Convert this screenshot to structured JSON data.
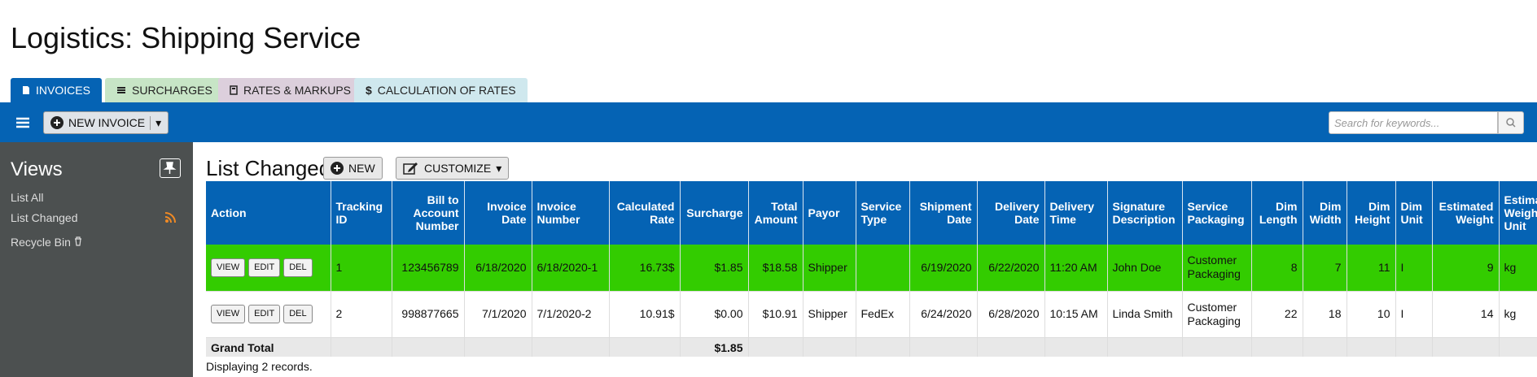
{
  "header": {
    "title": "Logistics: Shipping Service"
  },
  "tabs": [
    "INVOICES",
    "SURCHARGES",
    "RATES & MARKUPS",
    "CALCULATION OF RATES"
  ],
  "toolbar": {
    "new_button": "NEW INVOICE",
    "search_placeholder": "Search for keywords..."
  },
  "sidebar": {
    "title": "Views",
    "items": [
      "List All",
      "List Changed",
      "Recycle Bin"
    ]
  },
  "list": {
    "title": "List Changed",
    "new_button": "NEW",
    "customize_button": "CUSTOMIZE"
  },
  "table": {
    "columns": [
      "Action",
      "Tracking ID",
      "Bill to Account Number",
      "Invoice Date",
      "Invoice Number",
      "Calculated Rate",
      "Surcharge",
      "Total Amount",
      "Payor",
      "Service Type",
      "Shipment Date",
      "Delivery Date",
      "Delivery Time",
      "Signature Description",
      "Service Packaging",
      "Dim Length",
      "Dim Width",
      "Dim Height",
      "Dim Unit",
      "Estimated Weight",
      "Estimated Weight Unit"
    ],
    "rows": [
      {
        "actions": [
          "VIEW",
          "EDIT",
          "DEL"
        ],
        "cells": [
          "1",
          "123456789",
          "6/18/2020",
          "6/18/2020-1",
          "16.73$",
          "$1.85",
          "$18.58",
          "Shipper",
          null,
          "6/19/2020",
          "6/22/2020",
          "11:20 AM",
          "John Doe",
          "Customer Packaging",
          "8",
          "7",
          "11",
          "I",
          "9",
          "kg"
        ]
      },
      {
        "actions": [
          "VIEW",
          "EDIT",
          "DEL"
        ],
        "cells": [
          "2",
          "998877665",
          "7/1/2020",
          "7/1/2020-2",
          "10.91$",
          "$0.00",
          "$10.91",
          "Shipper",
          "FedEx",
          "6/24/2020",
          "6/28/2020",
          "10:15 AM",
          "Linda Smith",
          "Customer Packaging",
          "22",
          "18",
          "10",
          "I",
          "14",
          "kg"
        ]
      }
    ],
    "grand_total": {
      "label": "Grand Total",
      "surcharge": "$1.85"
    }
  },
  "footer": {
    "status": "Displaying 2 records."
  }
}
